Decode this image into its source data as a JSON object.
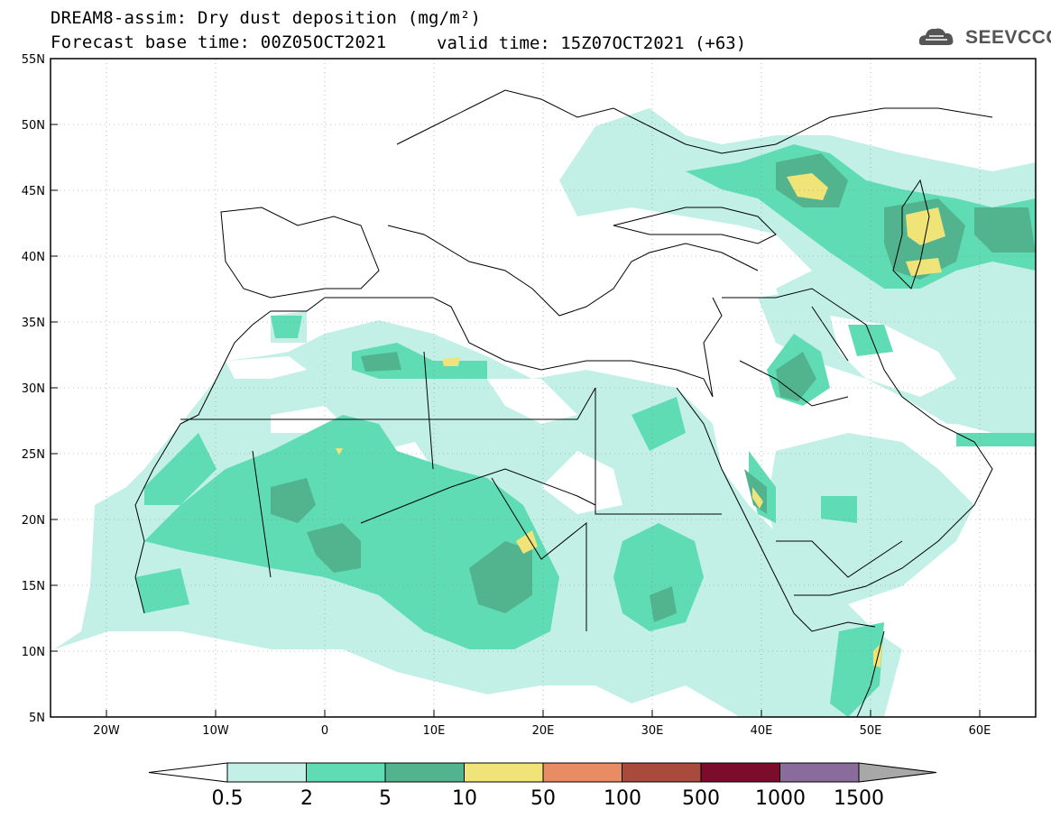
{
  "header": {
    "title_line_1": "DREAM8-assim: Dry dust deposition (mg/m²)",
    "title_line_2": "Forecast base time: 00Z05OCT2021",
    "valid_time": "valid time: 15Z07OCT2021 (+63)",
    "logo_text": "SEEVCCC"
  },
  "map": {
    "lat_labels": [
      "55N",
      "50N",
      "45N",
      "40N",
      "35N",
      "30N",
      "25N",
      "20N",
      "15N",
      "10N",
      "5N"
    ],
    "lon_labels": [
      "20W",
      "10W",
      "0",
      "10E",
      "20E",
      "30E",
      "40E",
      "50E",
      "60E"
    ],
    "lat_range": [
      5,
      55
    ],
    "lon_range": [
      -25,
      65
    ]
  },
  "legend": {
    "levels": [
      "0.5",
      "2",
      "5",
      "10",
      "50",
      "100",
      "500",
      "1000",
      "1500"
    ],
    "colors": [
      "#c2f0e6",
      "#5fdcb4",
      "#52b48e",
      "#f0e478",
      "#e88c64",
      "#a84a3c",
      "#7c0c2c",
      "#8a6c9c",
      "#a8a8a8"
    ],
    "under_color": "#ffffff"
  }
}
